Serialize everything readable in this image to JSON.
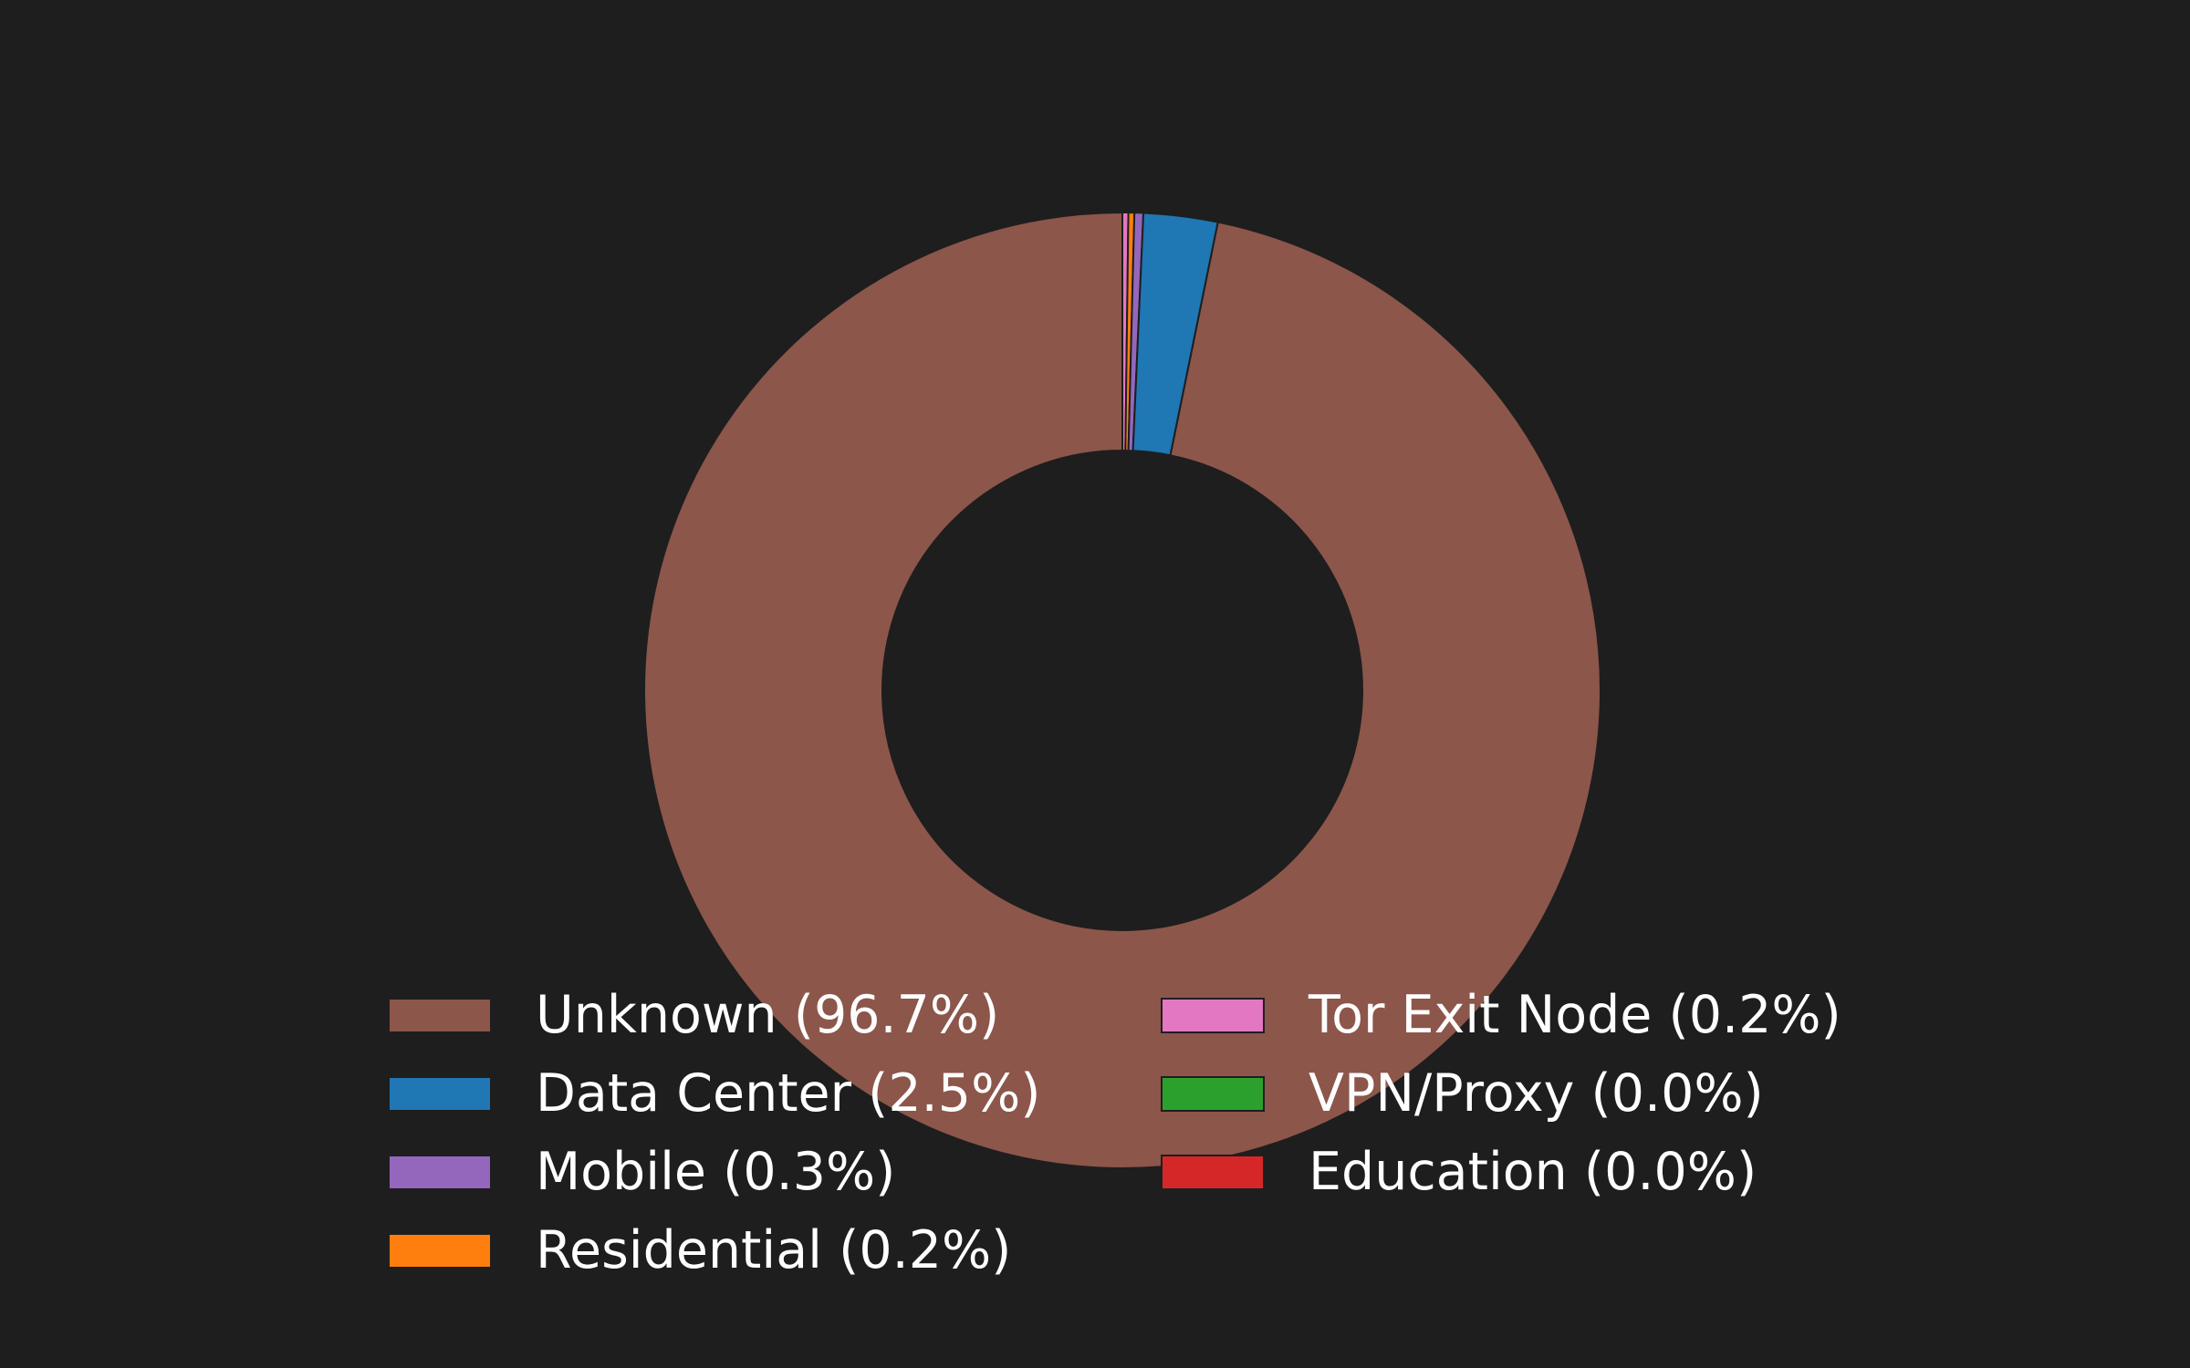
{
  "chart_data": {
    "type": "pie",
    "variant": "donut",
    "start": "top",
    "direction": "clockwise",
    "legend_placement": "lower-center",
    "background": "#1e1e1e",
    "slices": [
      {
        "label": "Unknown (96.7%)",
        "name": "Unknown",
        "value": 96.7,
        "color": "#8c564b"
      },
      {
        "label": "Data Center (2.5%)",
        "name": "Data Center",
        "value": 2.5,
        "color": "#1f77b4"
      },
      {
        "label": "Mobile (0.3%)",
        "name": "Mobile",
        "value": 0.3,
        "color": "#9467bd"
      },
      {
        "label": "Residential (0.2%)",
        "name": "Residential",
        "value": 0.2,
        "color": "#ff7f0e"
      },
      {
        "label": "Tor Exit Node (0.2%)",
        "name": "Tor Exit Node",
        "value": 0.2,
        "color": "#e377c2"
      },
      {
        "label": "VPN/Proxy (0.0%)",
        "name": "VPN/Proxy",
        "value": 0.0,
        "color": "#2ca02c"
      },
      {
        "label": "Education (0.0%)",
        "name": "Education",
        "value": 0.0,
        "color": "#d62728"
      }
    ],
    "draw_order": [
      "Tor Exit Node",
      "Residential",
      "Mobile",
      "Data Center",
      "Unknown",
      "VPN/Proxy",
      "Education"
    ]
  }
}
